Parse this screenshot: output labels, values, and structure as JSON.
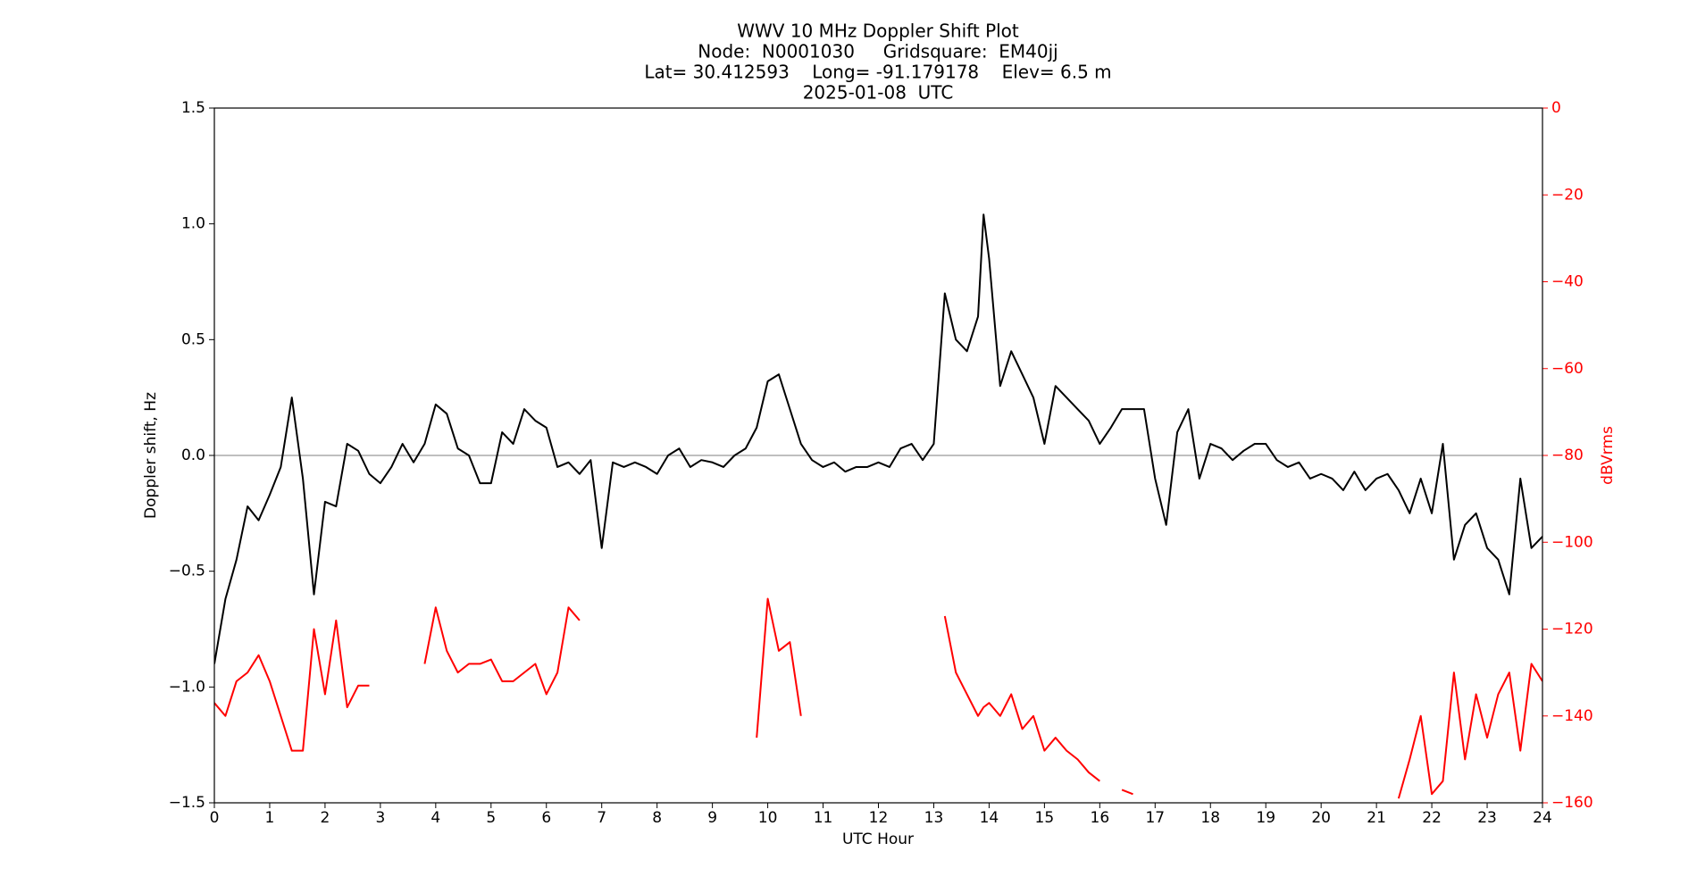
{
  "chart_data": {
    "type": "line",
    "title_lines": [
      "WWV 10 MHz Doppler Shift Plot",
      "Node:  N0001030     Gridsquare:  EM40jj",
      "Lat= 30.412593    Long= -91.179178    Elev= 6.5 m",
      "2025-01-08  UTC"
    ],
    "x_label": "UTC Hour",
    "y_label": "Doppler shift, Hz",
    "y2_label": "dBVrms",
    "x": [
      0,
      0.2,
      0.4,
      0.6,
      0.8,
      1.0,
      1.2,
      1.4,
      1.6,
      1.8,
      2.0,
      2.2,
      2.4,
      2.6,
      2.8,
      3.0,
      3.2,
      3.4,
      3.6,
      3.8,
      4.0,
      4.2,
      4.4,
      4.6,
      4.8,
      5.0,
      5.2,
      5.4,
      5.6,
      5.8,
      6.0,
      6.2,
      6.4,
      6.6,
      6.8,
      7.0,
      7.2,
      7.4,
      7.6,
      7.8,
      8.0,
      8.2,
      8.4,
      8.6,
      8.8,
      9.0,
      9.2,
      9.4,
      9.6,
      9.8,
      10.0,
      10.2,
      10.4,
      10.6,
      10.8,
      11.0,
      11.2,
      11.4,
      11.6,
      11.8,
      12.0,
      12.2,
      12.4,
      12.6,
      12.8,
      13.0,
      13.2,
      13.4,
      13.6,
      13.8,
      13.9,
      14.0,
      14.2,
      14.4,
      14.6,
      14.8,
      15.0,
      15.2,
      15.4,
      15.6,
      15.8,
      16.0,
      16.2,
      16.4,
      16.6,
      16.8,
      17.0,
      17.2,
      17.4,
      17.6,
      17.8,
      18.0,
      18.2,
      18.4,
      18.6,
      18.8,
      19.0,
      19.2,
      19.4,
      19.6,
      19.8,
      20.0,
      20.2,
      20.4,
      20.6,
      20.8,
      21.0,
      21.2,
      21.4,
      21.6,
      21.8,
      22.0,
      22.2,
      22.4,
      22.6,
      22.8,
      23.0,
      23.2,
      23.4,
      23.6,
      23.8,
      24.0
    ],
    "series": [
      {
        "name": "Doppler shift",
        "color": "#000000",
        "axis": "y",
        "values": [
          -0.9,
          -0.62,
          -0.45,
          -0.22,
          -0.28,
          -0.17,
          -0.05,
          0.25,
          -0.1,
          -0.6,
          -0.2,
          -0.22,
          0.05,
          0.02,
          -0.08,
          -0.12,
          -0.05,
          0.05,
          -0.03,
          0.05,
          0.22,
          0.18,
          0.03,
          0.0,
          -0.12,
          -0.12,
          0.1,
          0.05,
          0.2,
          0.15,
          0.12,
          -0.05,
          -0.03,
          -0.08,
          -0.02,
          -0.4,
          -0.03,
          -0.05,
          -0.03,
          -0.05,
          -0.08,
          0.0,
          0.03,
          -0.05,
          -0.02,
          -0.03,
          -0.05,
          0.0,
          0.03,
          0.12,
          0.32,
          0.35,
          0.2,
          0.05,
          -0.02,
          -0.05,
          -0.03,
          -0.07,
          -0.05,
          -0.05,
          -0.03,
          -0.05,
          0.03,
          0.05,
          -0.02,
          0.05,
          0.7,
          0.5,
          0.45,
          0.6,
          1.04,
          0.85,
          0.3,
          0.45,
          0.35,
          0.25,
          0.05,
          0.3,
          0.25,
          0.2,
          0.15,
          0.05,
          0.12,
          0.2,
          0.2,
          0.2,
          -0.1,
          -0.3,
          0.1,
          0.2,
          -0.1,
          0.05,
          0.03,
          -0.02,
          0.02,
          0.05,
          0.05,
          -0.02,
          -0.05,
          -0.03,
          -0.1,
          -0.08,
          -0.1,
          -0.15,
          -0.07,
          -0.15,
          -0.1,
          -0.08,
          -0.15,
          -0.25,
          -0.1,
          -0.25,
          0.05,
          -0.45,
          -0.3,
          -0.25,
          -0.4,
          -0.45,
          -0.6,
          -0.1,
          -0.4,
          -0.35
        ]
      },
      {
        "name": "Signal level",
        "color": "#ff0000",
        "axis": "y2",
        "values": [
          -137,
          -140,
          -132,
          -130,
          -126,
          -132,
          -140,
          -148,
          -148,
          -120,
          -135,
          -118,
          -138,
          -133,
          -133,
          null,
          null,
          null,
          null,
          -128,
          -115,
          -125,
          -130,
          -128,
          -128,
          -127,
          -132,
          -132,
          -130,
          -128,
          -135,
          -130,
          -115,
          -118,
          null,
          null,
          null,
          null,
          null,
          null,
          null,
          null,
          null,
          null,
          null,
          null,
          null,
          null,
          null,
          -145,
          -113,
          -125,
          -123,
          -140,
          null,
          null,
          null,
          null,
          null,
          null,
          null,
          null,
          null,
          null,
          null,
          null,
          -117,
          -130,
          -135,
          -140,
          -138,
          -137,
          -140,
          -135,
          -143,
          -140,
          -148,
          -145,
          -148,
          -150,
          -153,
          -155,
          null,
          -157,
          -158,
          null,
          null,
          -158,
          null,
          null,
          null,
          null,
          null,
          null,
          null,
          null,
          null,
          null,
          -156,
          null,
          null,
          null,
          null,
          null,
          null,
          -153,
          null,
          null,
          -159,
          -150,
          -140,
          -158,
          -155,
          -130,
          -150,
          -135,
          -145,
          -135,
          -130,
          -148,
          -128,
          -132
        ]
      }
    ],
    "xlim": [
      0,
      24
    ],
    "xticks": [
      0,
      1,
      2,
      3,
      4,
      5,
      6,
      7,
      8,
      9,
      10,
      11,
      12,
      13,
      14,
      15,
      16,
      17,
      18,
      19,
      20,
      21,
      22,
      23,
      24
    ],
    "ylim": [
      -1.5,
      1.5
    ],
    "yticks": [
      {
        "value": -1.5,
        "label": "−1.5"
      },
      {
        "value": -1.0,
        "label": "−1.0"
      },
      {
        "value": -0.5,
        "label": "−0.5"
      },
      {
        "value": 0,
        "label": "0.0"
      },
      0.5,
      {
        "value": 1.0,
        "label": "1.0"
      },
      1.5
    ],
    "y2lim": [
      -160,
      0
    ],
    "y2ticks": [
      {
        "value": -160,
        "label": "−160"
      },
      {
        "value": -140,
        "label": "−140"
      },
      {
        "value": -120,
        "label": "−120"
      },
      {
        "value": -100,
        "label": "−100"
      },
      {
        "value": -80,
        "label": "−80"
      },
      {
        "value": -60,
        "label": "−60"
      },
      {
        "value": -40,
        "label": "−40"
      },
      {
        "value": -20,
        "label": "−20"
      },
      0
    ],
    "y2_color": "#ff0000",
    "reference_line": 0,
    "grid": false
  }
}
